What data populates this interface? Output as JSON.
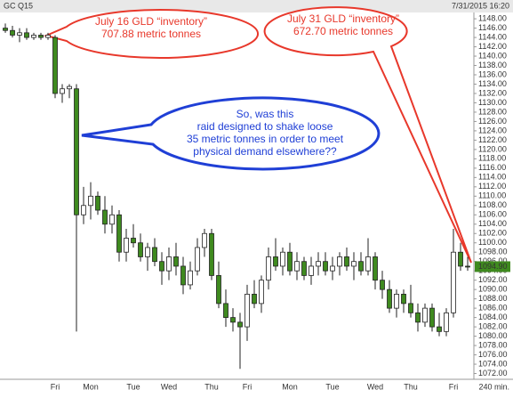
{
  "chart_data": {
    "type": "candlestick",
    "title": "GC Q15",
    "timestamp": "7/31/2015 16:20",
    "interval": "240 min.",
    "up_color": "#ffffff",
    "down_color": "#3f8a1f",
    "categories": [
      null,
      null,
      null,
      null,
      null,
      null,
      null,
      "Fri",
      null,
      null,
      null,
      null,
      "Mon",
      null,
      null,
      null,
      null,
      null,
      "Tue",
      null,
      null,
      null,
      null,
      "Wed",
      null,
      null,
      null,
      null,
      null,
      "Thu",
      null,
      null,
      null,
      null,
      "Fri",
      null,
      null,
      null,
      null,
      null,
      "Mon",
      null,
      null,
      null,
      null,
      null,
      "Tue",
      null,
      null,
      null,
      null,
      null,
      "Wed",
      null,
      null,
      null,
      null,
      "Thu",
      null,
      null,
      null,
      null,
      null,
      "Fri",
      null,
      null
    ],
    "open": [
      1146,
      1145.5,
      1144.5,
      1145,
      1144,
      1144.5,
      1144,
      1144,
      1132,
      1133,
      1133,
      1106,
      1108,
      1110,
      1107,
      1104,
      1106,
      1098,
      1101,
      1100,
      1097,
      1099,
      1096,
      1094,
      1097,
      1095,
      1091,
      1094,
      1099,
      1102,
      1093,
      1087,
      1084,
      1083,
      1082,
      1089,
      1087,
      1092,
      1097,
      1095,
      1098,
      1094,
      1096,
      1093,
      1095,
      1096,
      1094,
      1095,
      1097,
      1095,
      1096,
      1094,
      1097,
      1092,
      1090,
      1086,
      1089,
      1087,
      1085,
      1083,
      1086,
      1082,
      1081,
      1085,
      1098,
      1095
    ],
    "high": [
      1147,
      1146.5,
      1146,
      1146,
      1145,
      1145,
      1145,
      1144.5,
      1134,
      1134,
      1134,
      1112,
      1113,
      1111,
      1110,
      1108,
      1107,
      1103,
      1104,
      1102,
      1100,
      1101,
      1098,
      1099,
      1100,
      1097,
      1096,
      1101,
      1103,
      1103,
      1096,
      1090,
      1086,
      1085,
      1091,
      1092,
      1093,
      1099,
      1101,
      1099,
      1100,
      1098,
      1097,
      1097,
      1098,
      1098,
      1097,
      1098,
      1099,
      1098,
      1098,
      1101,
      1098,
      1094,
      1092,
      1090,
      1090,
      1091,
      1087,
      1087,
      1087,
      1085,
      1086,
      1103,
      1100,
      1097
    ],
    "low": [
      1145,
      1144,
      1143,
      1143.5,
      1143.5,
      1143.5,
      1143.5,
      1131,
      1130,
      1131,
      1081,
      1104,
      1105,
      1106,
      1102,
      1102,
      1096,
      1096,
      1099,
      1096,
      1094,
      1095,
      1091,
      1092,
      1093,
      1089,
      1090,
      1093,
      1097,
      1092,
      1086,
      1082,
      1081,
      1073,
      1079,
      1086,
      1085,
      1090,
      1094,
      1093,
      1093,
      1092,
      1092,
      1091,
      1093,
      1093,
      1092,
      1093,
      1094,
      1092,
      1093,
      1093,
      1090,
      1088,
      1085,
      1084,
      1085,
      1084,
      1081,
      1082,
      1081,
      1080,
      1080,
      1084,
      1094,
      1094
    ],
    "close": [
      1145.5,
      1144.5,
      1145,
      1144,
      1144.5,
      1144,
      1144.5,
      1132,
      1133,
      1133.5,
      1106,
      1108,
      1110,
      1107,
      1104,
      1106,
      1098,
      1101,
      1100,
      1097,
      1099,
      1096,
      1094,
      1097,
      1095,
      1091,
      1094,
      1099,
      1102,
      1093,
      1087,
      1084,
      1083,
      1082,
      1089,
      1087,
      1092,
      1097,
      1095,
      1098,
      1094,
      1096,
      1093,
      1095,
      1096,
      1094,
      1095,
      1097,
      1095,
      1096,
      1094,
      1097,
      1092,
      1090,
      1086,
      1089,
      1087,
      1085,
      1083,
      1086,
      1082,
      1081,
      1085,
      1098,
      1095,
      1094.9
    ],
    "last_price": {
      "value": 1094.9,
      "label": "1094.90"
    },
    "ylim": [
      1070,
      1150.5
    ],
    "yticks": [
      {
        "value": 1072,
        "label": "1072.00"
      },
      {
        "value": 1074,
        "label": "1074.00"
      },
      {
        "value": 1076,
        "label": "1076.00"
      },
      {
        "value": 1078,
        "label": "1078.00"
      },
      {
        "value": 1080,
        "label": "1080.00"
      },
      {
        "value": 1082,
        "label": "1082.00"
      },
      {
        "value": 1084,
        "label": "1084.00"
      },
      {
        "value": 1086,
        "label": "1086.00"
      },
      {
        "value": 1088,
        "label": "1088.00"
      },
      {
        "value": 1090,
        "label": "1090.00"
      },
      {
        "value": 1092,
        "label": "1092.00"
      },
      {
        "value": 1094,
        "label": "1094.00"
      },
      {
        "value": 1096,
        "label": "1096.00"
      },
      {
        "value": 1098,
        "label": "1098.00"
      },
      {
        "value": 1100,
        "label": "1100.00"
      },
      {
        "value": 1102,
        "label": "1102.00"
      },
      {
        "value": 1104,
        "label": "1104.00"
      },
      {
        "value": 1106,
        "label": "1106.00"
      },
      {
        "value": 1108,
        "label": "1108.00"
      },
      {
        "value": 1110,
        "label": "1110.00"
      },
      {
        "value": 1112,
        "label": "1112.00"
      },
      {
        "value": 1114,
        "label": "1114.00"
      },
      {
        "value": 1116,
        "label": "1116.00"
      },
      {
        "value": 1118,
        "label": "1118.00"
      },
      {
        "value": 1120,
        "label": "1120.00"
      },
      {
        "value": 1122,
        "label": "1122.00"
      },
      {
        "value": 1124,
        "label": "1124.00"
      },
      {
        "value": 1126,
        "label": "1126.00"
      },
      {
        "value": 1128,
        "label": "1128.00"
      },
      {
        "value": 1130,
        "label": "1130.00"
      },
      {
        "value": 1132,
        "label": "1132.00"
      },
      {
        "value": 1134,
        "label": "1134.00"
      },
      {
        "value": 1136,
        "label": "1136.00"
      },
      {
        "value": 1138,
        "label": "1138.00"
      },
      {
        "value": 1140,
        "label": "1140.00"
      },
      {
        "value": 1142,
        "label": "1142.00"
      },
      {
        "value": 1144,
        "label": "1144.00"
      },
      {
        "value": 1146,
        "label": "1146.00"
      },
      {
        "value": 1148,
        "label": "1148.00"
      }
    ],
    "annotations": [
      {
        "color": "#e8382b",
        "lines": [
          "July 16 GLD “inventory”",
          "707.88 metric tonnes"
        ]
      },
      {
        "color": "#e8382b",
        "lines": [
          "July 31 GLD “inventory”",
          "672.70 metric tonnes"
        ]
      },
      {
        "color": "#1f3fd6",
        "lines": [
          "So, was this",
          "raid designed to shake loose",
          "35 metric tonnes in order to meet",
          "physical demand elsewhere??"
        ]
      }
    ]
  }
}
